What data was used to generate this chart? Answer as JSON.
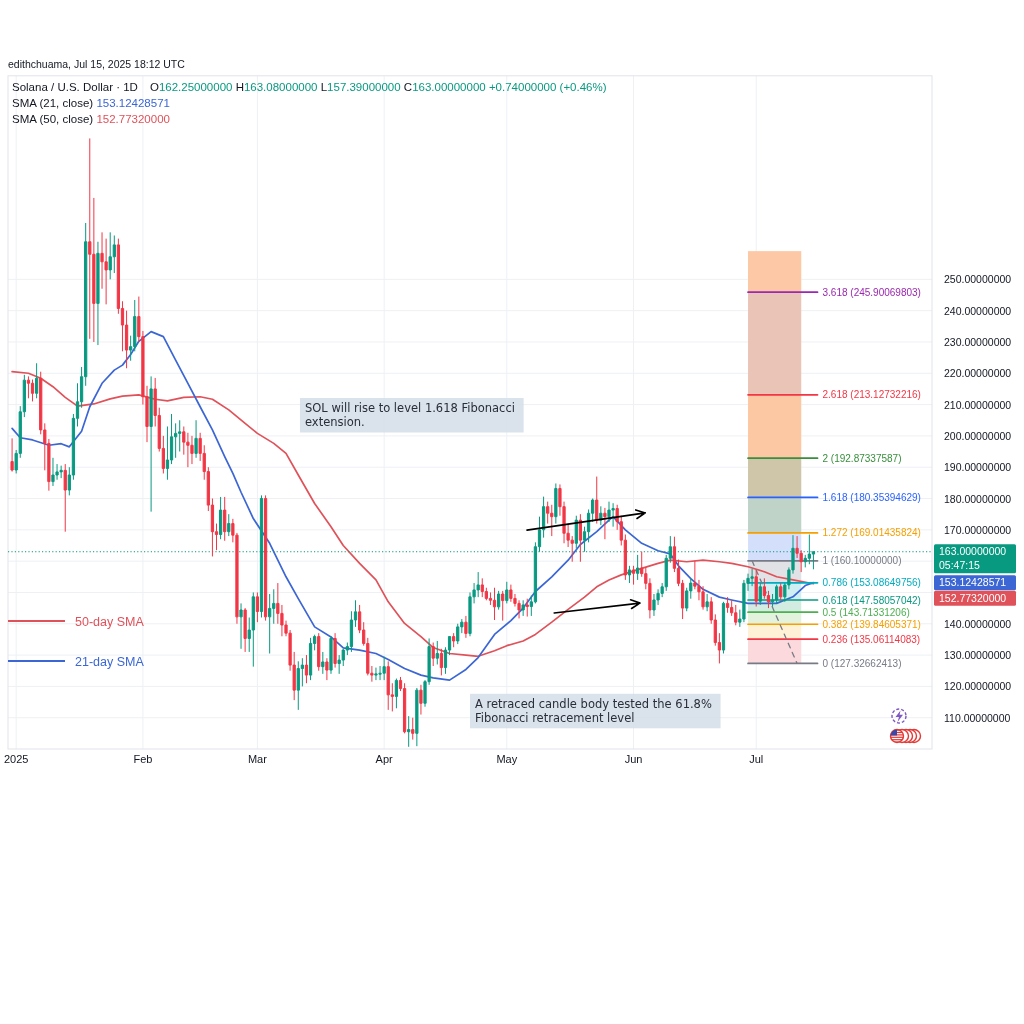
{
  "chart_data": {
    "type": "candlestick",
    "title": "Solana / U.S. Dollar · 1D",
    "subtitle": "O162.25000000 H163.08000000 L157.39000000 C163.00000000 +0.74000000 (+0.46%)",
    "x": [
      "2024-12-31",
      "2025-01-01",
      "2025-01-02",
      "2025-01-03",
      "2025-01-04",
      "2025-01-05",
      "2025-01-06",
      "2025-01-07",
      "2025-01-08",
      "2025-01-09",
      "2025-01-10",
      "2025-01-11",
      "2025-01-12",
      "2025-01-13",
      "2025-01-14",
      "2025-01-15",
      "2025-01-16",
      "2025-01-17",
      "2025-01-18",
      "2025-01-19",
      "2025-01-20",
      "2025-01-21",
      "2025-01-22",
      "2025-01-23",
      "2025-01-24",
      "2025-01-25",
      "2025-01-26",
      "2025-01-27",
      "2025-01-28",
      "2025-01-29",
      "2025-01-30",
      "2025-01-31",
      "2025-02-01",
      "2025-02-02",
      "2025-02-03",
      "2025-02-04",
      "2025-02-05",
      "2025-02-06",
      "2025-02-07",
      "2025-02-08",
      "2025-02-09",
      "2025-02-10",
      "2025-02-11",
      "2025-02-12",
      "2025-02-13",
      "2025-02-14",
      "2025-02-15",
      "2025-02-16",
      "2025-02-17",
      "2025-02-18",
      "2025-02-19",
      "2025-02-20",
      "2025-02-21",
      "2025-02-22",
      "2025-02-23",
      "2025-02-24",
      "2025-02-25",
      "2025-02-26",
      "2025-02-27",
      "2025-02-28",
      "2025-03-01",
      "2025-03-02",
      "2025-03-03",
      "2025-03-04",
      "2025-03-05",
      "2025-03-06",
      "2025-03-07",
      "2025-03-08",
      "2025-03-09",
      "2025-03-10",
      "2025-03-11",
      "2025-03-12",
      "2025-03-13",
      "2025-03-14",
      "2025-03-15",
      "2025-03-16",
      "2025-03-17",
      "2025-03-18",
      "2025-03-19",
      "2025-03-20",
      "2025-03-21",
      "2025-03-22",
      "2025-03-23",
      "2025-03-24",
      "2025-03-25",
      "2025-03-26",
      "2025-03-27",
      "2025-03-28",
      "2025-03-29",
      "2025-03-30",
      "2025-03-31",
      "2025-04-01",
      "2025-04-02",
      "2025-04-03",
      "2025-04-04",
      "2025-04-05",
      "2025-04-06",
      "2025-04-07",
      "2025-04-08",
      "2025-04-09",
      "2025-04-10",
      "2025-04-11",
      "2025-04-12",
      "2025-04-13",
      "2025-04-14",
      "2025-04-15",
      "2025-04-16",
      "2025-04-17",
      "2025-04-18",
      "2025-04-19",
      "2025-04-20",
      "2025-04-21",
      "2025-04-22",
      "2025-04-23",
      "2025-04-24",
      "2025-04-25",
      "2025-04-26",
      "2025-04-27",
      "2025-04-28",
      "2025-04-29",
      "2025-04-30",
      "2025-05-01",
      "2025-05-02",
      "2025-05-03",
      "2025-05-04",
      "2025-05-05",
      "2025-05-06",
      "2025-05-07",
      "2025-05-08",
      "2025-05-09",
      "2025-05-10",
      "2025-05-11",
      "2025-05-12",
      "2025-05-13",
      "2025-05-14",
      "2025-05-15",
      "2025-05-16",
      "2025-05-17",
      "2025-05-18",
      "2025-05-19",
      "2025-05-20",
      "2025-05-21",
      "2025-05-22",
      "2025-05-23",
      "2025-05-24",
      "2025-05-25",
      "2025-05-26",
      "2025-05-27",
      "2025-05-28",
      "2025-05-29",
      "2025-05-30",
      "2025-05-31",
      "2025-06-01",
      "2025-06-02",
      "2025-06-03",
      "2025-06-04",
      "2025-06-05",
      "2025-06-06",
      "2025-06-07",
      "2025-06-08",
      "2025-06-09",
      "2025-06-10",
      "2025-06-11",
      "2025-06-12",
      "2025-06-13",
      "2025-06-14",
      "2025-06-15",
      "2025-06-16",
      "2025-06-17",
      "2025-06-18",
      "2025-06-19",
      "2025-06-20",
      "2025-06-21",
      "2025-06-22",
      "2025-06-23",
      "2025-06-24",
      "2025-06-25",
      "2025-06-26",
      "2025-06-27",
      "2025-06-28",
      "2025-06-29",
      "2025-06-30",
      "2025-07-01",
      "2025-07-02",
      "2025-07-03",
      "2025-07-04",
      "2025-07-05",
      "2025-07-06",
      "2025-07-07",
      "2025-07-08",
      "2025-07-09",
      "2025-07-10",
      "2025-07-11",
      "2025-07-12",
      "2025-07-13",
      "2025-07-14",
      "2025-07-15"
    ],
    "ohlc": [
      [
        191.8,
        199.2,
        188.6,
        189.1
      ],
      [
        189.1,
        195.5,
        188.0,
        194.4
      ],
      [
        194.4,
        209.5,
        193.0,
        207.7
      ],
      [
        207.7,
        219.5,
        206.0,
        217.8
      ],
      [
        217.8,
        219.0,
        212.0,
        216.8
      ],
      [
        216.8,
        218.0,
        211.0,
        213.6
      ],
      [
        213.6,
        223.2,
        212.0,
        218.4
      ],
      [
        218.4,
        220.5,
        200.5,
        201.9
      ],
      [
        201.9,
        204.0,
        189.0,
        197.6
      ],
      [
        197.6,
        199.0,
        182.5,
        185.4
      ],
      [
        185.4,
        193.0,
        184.0,
        187.5
      ],
      [
        187.5,
        191.0,
        186.0,
        188.5
      ],
      [
        188.5,
        190.5,
        186.5,
        189.0
      ],
      [
        189.0,
        191.0,
        169.4,
        182.7
      ],
      [
        182.7,
        190.0,
        181.0,
        187.5
      ],
      [
        187.5,
        207.0,
        186.0,
        205.6
      ],
      [
        205.6,
        216.8,
        203.0,
        210.9
      ],
      [
        210.9,
        222.0,
        209.0,
        218.9
      ],
      [
        218.9,
        268.0,
        216.0,
        262.0
      ],
      [
        262.0,
        295.0,
        231.0,
        258.0
      ],
      [
        258.0,
        276.0,
        230.0,
        242.3
      ],
      [
        242.3,
        262.0,
        229.0,
        258.3
      ],
      [
        258.3,
        265.0,
        247.0,
        255.6
      ],
      [
        255.6,
        263.0,
        242.0,
        253.0
      ],
      [
        253.0,
        265.0,
        250.0,
        257.2
      ],
      [
        257.2,
        264.0,
        252.0,
        261.0
      ],
      [
        261.0,
        263.0,
        239.0,
        240.7
      ],
      [
        240.7,
        243.0,
        227.0,
        235.4
      ],
      [
        235.4,
        240.0,
        221.6,
        227.4
      ],
      [
        227.4,
        232.0,
        224.0,
        228.5
      ],
      [
        228.5,
        243.4,
        227.0,
        238.1
      ],
      [
        238.1,
        244.5,
        230.0,
        231.7
      ],
      [
        231.7,
        233.5,
        210.0,
        212.5
      ],
      [
        212.5,
        216.0,
        198.0,
        203.0
      ],
      [
        203.0,
        219.0,
        175.8,
        215.0
      ],
      [
        215.0,
        218.5,
        203.0,
        206.5
      ],
      [
        206.5,
        209.0,
        195.0,
        196.0
      ],
      [
        196.0,
        200.0,
        188.0,
        189.6
      ],
      [
        189.6,
        203.0,
        186.0,
        192.3
      ],
      [
        192.3,
        207.0,
        191.0,
        199.7
      ],
      [
        199.7,
        204.0,
        193.0,
        200.8
      ],
      [
        200.8,
        205.0,
        195.0,
        201.3
      ],
      [
        201.3,
        203.0,
        194.0,
        198.0
      ],
      [
        198.0,
        201.0,
        190.0,
        197.0
      ],
      [
        197.0,
        200.0,
        191.0,
        194.4
      ],
      [
        194.4,
        205.0,
        193.0,
        199.2
      ],
      [
        199.2,
        201.0,
        192.0,
        194.4
      ],
      [
        194.4,
        197.0,
        186.0,
        188.6
      ],
      [
        188.6,
        190.0,
        176.0,
        177.9
      ],
      [
        177.9,
        180.0,
        161.5,
        169.4
      ],
      [
        169.4,
        172.0,
        163.5,
        168.5
      ],
      [
        168.5,
        180.5,
        167.0,
        176.3
      ],
      [
        176.3,
        180.5,
        166.5,
        169.4
      ],
      [
        169.4,
        175.0,
        168.0,
        172.0
      ],
      [
        172.0,
        173.5,
        166.0,
        168.3
      ],
      [
        168.3,
        169.0,
        140.0,
        142.2
      ],
      [
        142.2,
        146.5,
        132.0,
        144.4
      ],
      [
        144.4,
        145.0,
        131.0,
        135.3
      ],
      [
        135.3,
        142.0,
        131.0,
        138.0
      ],
      [
        138.0,
        150.0,
        126.3,
        148.6
      ],
      [
        148.6,
        150.0,
        140.5,
        143.9
      ],
      [
        143.9,
        181.0,
        142.0,
        180.0
      ],
      [
        180.0,
        181.0,
        141.0,
        142.2
      ],
      [
        142.2,
        149.5,
        130.5,
        144.9
      ],
      [
        144.9,
        151.0,
        140.0,
        146.5
      ],
      [
        146.5,
        153.0,
        140.0,
        143.3
      ],
      [
        143.3,
        146.0,
        136.0,
        139.6
      ],
      [
        139.6,
        141.0,
        136.0,
        137.0
      ],
      [
        137.0,
        138.0,
        125.0,
        126.8
      ],
      [
        126.8,
        131.0,
        115.6,
        118.8
      ],
      [
        118.8,
        128.0,
        112.5,
        125.7
      ],
      [
        125.7,
        129.0,
        120.0,
        126.8
      ],
      [
        126.8,
        130.0,
        121.0,
        123.6
      ],
      [
        123.6,
        135.5,
        122.0,
        133.7
      ],
      [
        133.7,
        136.5,
        131.5,
        135.9
      ],
      [
        135.9,
        137.0,
        125.0,
        126.3
      ],
      [
        126.3,
        131.0,
        124.0,
        127.8
      ],
      [
        127.8,
        129.0,
        122.0,
        125.2
      ],
      [
        125.2,
        136.0,
        124.0,
        135.3
      ],
      [
        135.3,
        137.0,
        126.0,
        127.3
      ],
      [
        127.3,
        130.0,
        124.0,
        128.4
      ],
      [
        128.4,
        132.0,
        126.5,
        131.6
      ],
      [
        131.6,
        134.0,
        130.0,
        132.7
      ],
      [
        132.7,
        144.0,
        131.0,
        141.2
      ],
      [
        141.2,
        147.5,
        139.0,
        143.8
      ],
      [
        143.8,
        146.0,
        137.0,
        138.0
      ],
      [
        138.0,
        140.5,
        133.0,
        133.7
      ],
      [
        133.7,
        135.5,
        123.5,
        124.2
      ],
      [
        124.2,
        126.5,
        121.5,
        123.6
      ],
      [
        123.6,
        126.0,
        122.0,
        124.0
      ],
      [
        124.0,
        126.5,
        122.0,
        124.2
      ],
      [
        124.2,
        129.5,
        122.0,
        126.3
      ],
      [
        126.3,
        128.0,
        112.5,
        117.3
      ],
      [
        117.3,
        121.0,
        112.0,
        116.8
      ],
      [
        116.8,
        122.5,
        113.0,
        121.9
      ],
      [
        121.9,
        123.0,
        118.5,
        119.3
      ],
      [
        119.3,
        121.0,
        105.0,
        105.5
      ],
      [
        105.5,
        110.5,
        100.7,
        106.2
      ],
      [
        106.2,
        110.0,
        103.0,
        105.0
      ],
      [
        105.0,
        119.5,
        100.9,
        118.8
      ],
      [
        118.8,
        120.5,
        111.0,
        114.6
      ],
      [
        114.6,
        122.0,
        113.5,
        121.5
      ],
      [
        121.5,
        135.3,
        120.5,
        132.7
      ],
      [
        132.7,
        134.0,
        126.5,
        129.0
      ],
      [
        129.0,
        134.5,
        127.0,
        130.5
      ],
      [
        130.5,
        132.0,
        123.5,
        126.0
      ],
      [
        126.0,
        132.5,
        124.0,
        131.6
      ],
      [
        131.6,
        136.0,
        130.0,
        135.9
      ],
      [
        135.9,
        137.0,
        132.5,
        134.5
      ],
      [
        134.5,
        140.0,
        133.5,
        139.0
      ],
      [
        139.0,
        141.5,
        137.0,
        140.5
      ],
      [
        140.5,
        142.5,
        135.5,
        136.9
      ],
      [
        136.9,
        150.0,
        136.0,
        148.6
      ],
      [
        148.6,
        153.0,
        146.5,
        150.8
      ],
      [
        150.8,
        156.5,
        148.5,
        152.4
      ],
      [
        152.4,
        154.5,
        148.5,
        150.3
      ],
      [
        150.3,
        151.5,
        147.5,
        148.1
      ],
      [
        148.1,
        150.0,
        146.0,
        147.5
      ],
      [
        147.5,
        151.5,
        141.2,
        145.4
      ],
      [
        145.4,
        150.5,
        144.5,
        149.5
      ],
      [
        149.5,
        150.5,
        141.0,
        147.4
      ],
      [
        147.4,
        153.4,
        146.5,
        150.8
      ],
      [
        150.8,
        152.5,
        147.0,
        148.1
      ],
      [
        148.1,
        149.5,
        145.5,
        146.5
      ],
      [
        146.5,
        147.5,
        141.7,
        144.4
      ],
      [
        144.4,
        147.5,
        142.5,
        146.0
      ],
      [
        146.0,
        148.0,
        142.3,
        145.5
      ],
      [
        145.5,
        149.0,
        142.5,
        147.0
      ],
      [
        147.0,
        166.0,
        146.5,
        164.6
      ],
      [
        164.6,
        174.2,
        163.0,
        170.0
      ],
      [
        170.0,
        180.6,
        167.5,
        177.4
      ],
      [
        177.4,
        179.0,
        172.0,
        175.3
      ],
      [
        175.3,
        178.0,
        168.0,
        174.2
      ],
      [
        174.2,
        184.8,
        172.0,
        183.2
      ],
      [
        183.2,
        184.5,
        174.5,
        177.4
      ],
      [
        177.4,
        179.0,
        165.7,
        168.9
      ],
      [
        168.9,
        172.0,
        164.5,
        166.7
      ],
      [
        166.7,
        168.0,
        159.8,
        165.7
      ],
      [
        165.7,
        174.5,
        164.0,
        173.1
      ],
      [
        173.1,
        175.0,
        159.8,
        166.7
      ],
      [
        166.7,
        171.0,
        163.0,
        169.4
      ],
      [
        169.4,
        176.5,
        166.0,
        175.3
      ],
      [
        175.3,
        180.0,
        172.5,
        179.5
      ],
      [
        179.5,
        187.0,
        172.0,
        173.1
      ],
      [
        173.1,
        177.5,
        171.5,
        175.3
      ],
      [
        175.3,
        177.0,
        167.0,
        174.2
      ],
      [
        174.2,
        179.0,
        172.5,
        176.3
      ],
      [
        176.3,
        178.5,
        171.0,
        176.8
      ],
      [
        176.8,
        178.0,
        170.0,
        172.6
      ],
      [
        172.6,
        174.5,
        165.0,
        166.7
      ],
      [
        166.7,
        168.5,
        154.0,
        155.6
      ],
      [
        155.6,
        158.5,
        153.0,
        157.2
      ],
      [
        157.2,
        158.5,
        152.5,
        156.1
      ],
      [
        156.1,
        162.0,
        154.0,
        157.8
      ],
      [
        157.8,
        163.0,
        155.0,
        156.0
      ],
      [
        156.0,
        158.0,
        151.0,
        152.9
      ],
      [
        152.9,
        154.5,
        141.7,
        144.4
      ],
      [
        144.4,
        149.5,
        142.5,
        147.6
      ],
      [
        147.6,
        151.0,
        146.0,
        149.7
      ],
      [
        149.7,
        153.0,
        148.5,
        151.8
      ],
      [
        151.8,
        162.0,
        150.5,
        160.9
      ],
      [
        160.9,
        168.0,
        159.5,
        164.6
      ],
      [
        164.6,
        167.8,
        156.5,
        157.7
      ],
      [
        157.7,
        160.5,
        152.0,
        152.9
      ],
      [
        152.9,
        154.0,
        141.5,
        145.0
      ],
      [
        145.0,
        151.5,
        144.0,
        150.5
      ],
      [
        150.5,
        154.5,
        148.0,
        153.0
      ],
      [
        153.0,
        160.1,
        151.0,
        152.0
      ],
      [
        152.0,
        154.0,
        147.5,
        150.2
      ],
      [
        150.2,
        152.0,
        144.5,
        145.4
      ],
      [
        145.4,
        149.5,
        144.0,
        147.0
      ],
      [
        147.0,
        148.5,
        140.0,
        141.2
      ],
      [
        141.2,
        143.0,
        133.0,
        134.0
      ],
      [
        134.0,
        137.0,
        127.33,
        131.6
      ],
      [
        131.6,
        147.0,
        130.5,
        146.5
      ],
      [
        146.5,
        148.5,
        143.5,
        145.2
      ],
      [
        145.2,
        147.5,
        142.5,
        143.5
      ],
      [
        143.5,
        146.0,
        139.5,
        140.5
      ],
      [
        140.5,
        144.5,
        139.0,
        141.5
      ],
      [
        141.5,
        154.0,
        140.5,
        152.9
      ],
      [
        152.9,
        156.0,
        150.5,
        154.5
      ],
      [
        154.5,
        157.5,
        152.0,
        155.0
      ],
      [
        155.0,
        157.0,
        145.5,
        147.2
      ],
      [
        147.2,
        153.0,
        146.0,
        151.8
      ],
      [
        151.8,
        154.5,
        148.0,
        149.0
      ],
      [
        149.0,
        150.5,
        145.0,
        147.0
      ],
      [
        147.0,
        149.5,
        145.5,
        147.6
      ],
      [
        147.6,
        152.5,
        146.5,
        151.8
      ],
      [
        151.8,
        153.0,
        147.5,
        148.6
      ],
      [
        148.6,
        153.0,
        147.0,
        152.4
      ],
      [
        152.4,
        158.0,
        151.0,
        157.2
      ],
      [
        157.2,
        168.3,
        156.0,
        164.1
      ],
      [
        164.1,
        168.0,
        161.0,
        162.5
      ],
      [
        162.5,
        163.5,
        156.5,
        159.8
      ],
      [
        159.8,
        162.0,
        158.0,
        160.9
      ],
      [
        160.9,
        168.5,
        159.0,
        162.25
      ],
      [
        162.25,
        163.08,
        157.39,
        163.0
      ]
    ],
    "series": [
      {
        "name": "50-day SMA",
        "type": "line",
        "color": "#e0525a",
        "x": [
          "2024-12-31",
          "2025-01-04",
          "2025-01-07",
          "2025-01-10",
          "2025-01-13",
          "2025-01-16",
          "2025-01-20",
          "2025-01-24",
          "2025-01-27",
          "2025-01-31",
          "2025-02-04",
          "2025-02-07",
          "2025-02-11",
          "2025-02-15",
          "2025-02-18",
          "2025-02-22",
          "2025-02-26",
          "2025-03-01",
          "2025-03-05",
          "2025-03-08",
          "2025-03-11",
          "2025-03-15",
          "2025-03-19",
          "2025-03-22",
          "2025-03-26",
          "2025-03-30",
          "2025-04-02",
          "2025-04-06",
          "2025-04-10",
          "2025-04-13",
          "2025-04-17",
          "2025-04-21",
          "2025-04-24",
          "2025-04-28",
          "2025-05-01",
          "2025-05-05",
          "2025-05-08",
          "2025-05-12",
          "2025-05-16",
          "2025-05-20",
          "2025-05-23",
          "2025-05-26",
          "2025-05-29",
          "2025-06-03",
          "2025-06-07",
          "2025-06-10",
          "2025-06-14",
          "2025-06-18",
          "2025-06-22",
          "2025-06-25",
          "2025-06-29",
          "2025-07-03",
          "2025-07-06",
          "2025-07-10",
          "2025-07-15"
        ],
        "values": [
          220.5,
          220.0,
          218.4,
          215.7,
          212.3,
          209.5,
          210.2,
          211.8,
          212.7,
          213.1,
          211.7,
          211.2,
          212.3,
          212.5,
          211.7,
          208.3,
          204.0,
          200.8,
          197.6,
          194.4,
          187.5,
          178.4,
          171.0,
          165.0,
          159.3,
          154.0,
          147.0,
          140.1,
          135.9,
          132.4,
          130.5,
          130.0,
          129.6,
          131.4,
          133.0,
          134.5,
          136.6,
          140.5,
          144.6,
          148.5,
          151.8,
          154.0,
          155.6,
          157.7,
          159.3,
          160.3,
          159.8,
          160.3,
          159.8,
          159.3,
          158.2,
          156.6,
          155.0,
          154.0,
          152.7732
        ]
      },
      {
        "name": "21-day SMA",
        "type": "line",
        "color": "#3b66d4",
        "x": [
          "2024-12-31",
          "2025-01-02",
          "2025-01-05",
          "2025-01-09",
          "2025-01-12",
          "2025-01-14",
          "2025-01-17",
          "2025-01-19",
          "2025-01-22",
          "2025-01-25",
          "2025-01-27",
          "2025-01-29",
          "2025-01-31",
          "2025-02-03",
          "2025-02-06",
          "2025-02-09",
          "2025-02-12",
          "2025-02-15",
          "2025-02-18",
          "2025-02-21",
          "2025-02-23",
          "2025-02-25",
          "2025-02-28",
          "2025-03-04",
          "2025-03-08",
          "2025-03-11",
          "2025-03-15",
          "2025-03-19",
          "2025-03-22",
          "2025-03-26",
          "2025-03-30",
          "2025-04-02",
          "2025-04-06",
          "2025-04-10",
          "2025-04-13",
          "2025-04-17",
          "2025-04-21",
          "2025-04-24",
          "2025-04-28",
          "2025-05-02",
          "2025-05-05",
          "2025-05-08",
          "2025-05-12",
          "2025-05-16",
          "2025-05-19",
          "2025-05-23",
          "2025-05-26",
          "2025-05-27",
          "2025-05-30",
          "2025-06-03",
          "2025-06-07",
          "2025-06-10",
          "2025-06-12",
          "2025-06-15",
          "2025-06-18",
          "2025-06-22",
          "2025-06-25",
          "2025-06-29",
          "2025-07-03",
          "2025-07-06",
          "2025-07-10",
          "2025-07-13",
          "2025-07-15"
        ],
        "values": [
          202.4,
          199.4,
          198.7,
          197.0,
          197.5,
          196.5,
          201.5,
          209.3,
          216.8,
          221.0,
          222.6,
          226.0,
          230.2,
          233.3,
          231.7,
          224.2,
          216.8,
          209.3,
          201.9,
          193.4,
          188.0,
          182.0,
          173.6,
          165.7,
          155.0,
          148.0,
          139.0,
          135.8,
          132.3,
          131.6,
          130.5,
          128.6,
          125.7,
          123.6,
          122.7,
          122.0,
          125.4,
          129.2,
          136.6,
          141.0,
          145.0,
          150.3,
          155.0,
          160.3,
          165.3,
          169.4,
          173.1,
          174.2,
          170.0,
          165.7,
          163.3,
          162.3,
          158.5,
          154.4,
          151.0,
          148.5,
          147.6,
          146.5,
          146.5,
          146.5,
          148.6,
          152.2,
          153.12428571
        ]
      },
      {
        "type": "line",
        "color": "#9c27b0",
        "x": [
          "2025-06-29",
          "2025-07-16"
        ],
        "values": [
          245.90069803,
          245.90069803
        ],
        "value_labels": [
          null,
          "3.618 (245.90069803)"
        ]
      },
      {
        "type": "line",
        "color": "#f23645",
        "x": [
          "2025-06-29",
          "2025-07-16"
        ],
        "values": [
          213.12732216,
          213.12732216
        ],
        "value_labels": [
          null,
          "2.618 (213.12732216)"
        ]
      },
      {
        "type": "line",
        "color": "#388e3c",
        "x": [
          "2025-06-29",
          "2025-07-16"
        ],
        "values": [
          192.87337587,
          192.87337587
        ],
        "value_labels": [
          null,
          "2 (192.87337587)"
        ]
      },
      {
        "type": "line",
        "color": "#2962ff",
        "x": [
          "2025-06-29",
          "2025-07-16"
        ],
        "values": [
          180.35394629,
          180.35394629
        ],
        "value_labels": [
          null,
          "1.618 (180.35394629)"
        ]
      },
      {
        "type": "line",
        "color": "#f59f00",
        "x": [
          "2025-06-29",
          "2025-07-16"
        ],
        "values": [
          169.01435824,
          169.01435824
        ],
        "value_labels": [
          null,
          "1.272 (169.01435824)"
        ]
      },
      {
        "type": "line",
        "color": "#787b86",
        "x": [
          "2025-06-29",
          "2025-07-16"
        ],
        "values": [
          160.1,
          160.1
        ],
        "value_labels": [
          null,
          "1 (160.10000000)"
        ]
      },
      {
        "type": "line",
        "color": "#00acc1",
        "x": [
          "2025-06-29",
          "2025-07-16"
        ],
        "values": [
          153.08649756,
          153.08649756
        ],
        "value_labels": [
          null,
          "0.786 (153.08649756)"
        ]
      },
      {
        "type": "line",
        "color": "#089981",
        "x": [
          "2025-06-29",
          "2025-07-16"
        ],
        "values": [
          147.58057042,
          147.58057042
        ],
        "value_labels": [
          null,
          "0.618 (147.58057042)"
        ]
      },
      {
        "type": "line",
        "color": "#4caf50",
        "x": [
          "2025-06-29",
          "2025-07-16"
        ],
        "values": [
          143.71331206,
          143.71331206
        ],
        "value_labels": [
          null,
          "0.5 (143.71331206)"
        ]
      },
      {
        "type": "line",
        "color": "#f59f00",
        "x": [
          "2025-06-29",
          "2025-07-16"
        ],
        "values": [
          139.84605371,
          139.84605371
        ],
        "value_labels": [
          null,
          "0.382 (139.84605371)"
        ]
      },
      {
        "type": "line",
        "color": "#f23645",
        "x": [
          "2025-06-29",
          "2025-07-16"
        ],
        "values": [
          135.06114083,
          135.06114083
        ],
        "value_labels": [
          null,
          "0.236 (135.06114083)"
        ]
      },
      {
        "type": "line",
        "color": "#787b86",
        "x": [
          "2025-06-29",
          "2025-07-16"
        ],
        "values": [
          127.32662413,
          127.32662413
        ],
        "value_labels": [
          null,
          "0 (127.32662413)"
        ]
      },
      {
        "type": "line",
        "color": "#787b86",
        "line_style": "dashed",
        "x": [
          "2025-06-30",
          "2025-07-11"
        ],
        "values": [
          160.1,
          127.33
        ]
      }
    ],
    "xlim": [
      "2024-12-30",
      "2025-08-13"
    ],
    "xticks": [
      {
        "value": "2025-01-01",
        "label": "2025"
      },
      {
        "value": "2025-02-01",
        "label": "Feb"
      },
      {
        "value": "2025-03-01",
        "label": "Mar"
      },
      {
        "value": "2025-04-01",
        "label": "Apr"
      },
      {
        "value": "2025-05-01",
        "label": "May"
      },
      {
        "value": "2025-06-01",
        "label": "Jun"
      },
      {
        "value": "2025-07-01",
        "label": "Jul"
      }
    ],
    "ylim": [
      100,
      315
    ],
    "yticks": [
      {
        "value": 110,
        "label": "110.00000000"
      },
      {
        "value": 120,
        "label": "120.00000000"
      },
      {
        "value": 130,
        "label": "130.00000000"
      },
      {
        "value": 140,
        "label": "140.00000000"
      },
      {
        "value": 150,
        "label": null
      },
      {
        "value": 160,
        "label": null
      },
      {
        "value": 170,
        "label": "170.00000000"
      },
      {
        "value": 180,
        "label": "180.00000000"
      },
      {
        "value": 190,
        "label": "190.00000000"
      },
      {
        "value": 200,
        "label": "200.00000000"
      },
      {
        "value": 210,
        "label": "210.00000000"
      },
      {
        "value": 220,
        "label": "220.00000000"
      },
      {
        "value": 230,
        "label": "230.00000000"
      },
      {
        "value": 240,
        "label": "240.00000000"
      },
      {
        "value": 250,
        "label": "250.00000000"
      }
    ],
    "grid": true,
    "legend": "bottom left",
    "ref_lines": [
      {
        "axis": "y",
        "value": 163,
        "label": "163.00000000",
        "color": "#089981",
        "line_style": "dotted"
      }
    ],
    "bands": [
      {
        "axis": "y",
        "from": 127.32662413,
        "to": 135.06114083,
        "color": "#fbd9dc"
      },
      {
        "axis": "y",
        "from": 135.06114083,
        "to": 139.84605371,
        "color": "#fff1d6"
      },
      {
        "axis": "y",
        "from": 139.84605371,
        "to": 143.71331206,
        "color": "#e2f2dc"
      },
      {
        "axis": "y",
        "from": 143.71331206,
        "to": 147.58057042,
        "color": "#d3ece1"
      },
      {
        "axis": "y",
        "from": 147.58057042,
        "to": 153.08649756,
        "color": "#cfeff2"
      },
      {
        "axis": "y",
        "from": 153.08649756,
        "to": 160.1,
        "color": "#e1e2e5"
      },
      {
        "axis": "y",
        "from": 160.1,
        "to": 169.01435824,
        "color": "#d4e0fb"
      },
      {
        "axis": "y",
        "from": 169.01435824,
        "to": 180.35394629,
        "color": "#bfd3c8"
      },
      {
        "axis": "y",
        "from": 180.35394629,
        "to": 192.87337587,
        "color": "#cfc5a8"
      },
      {
        "axis": "y",
        "from": 192.87337587,
        "to": 213.12732216,
        "color": "#fcc7a3"
      },
      {
        "axis": "y",
        "from": 213.12732216,
        "to": 245.90069803,
        "color": "#ebc4b8"
      },
      {
        "axis": "y",
        "from": 245.90069803,
        "to": 259,
        "color": "#fcc8a6"
      }
    ],
    "annotations": [
      "edithchuama, Jul 15, 2025 18:12 UTC",
      "SMA (21, close) 153.12428571",
      "SMA (50, close) 152.77320000",
      "SOL will rise to level 1.618 Fibonacci extension.",
      "A retraced candle body tested the 61.8% Fibonacci retracement level",
      "05:47:15",
      "153.12428571",
      "152.77320000"
    ]
  }
}
